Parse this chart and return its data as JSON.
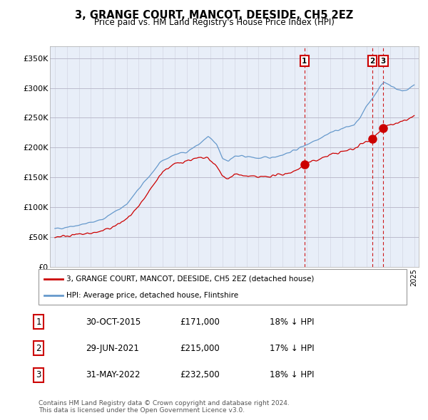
{
  "title": "3, GRANGE COURT, MANCOT, DEESIDE, CH5 2EZ",
  "subtitle": "Price paid vs. HM Land Registry's House Price Index (HPI)",
  "ylabel_ticks": [
    "£0",
    "£50K",
    "£100K",
    "£150K",
    "£200K",
    "£250K",
    "£300K",
    "£350K"
  ],
  "ytick_values": [
    0,
    50000,
    100000,
    150000,
    200000,
    250000,
    300000,
    350000
  ],
  "ylim": [
    0,
    370000
  ],
  "sale_years": [
    2015.833,
    2021.5,
    2022.417
  ],
  "sale_prices": [
    171000,
    215000,
    232500
  ],
  "sale_labels": [
    "1",
    "2",
    "3"
  ],
  "legend_line_label": "3, GRANGE COURT, MANCOT, DEESIDE, CH5 2EZ (detached house)",
  "legend_hpi_label": "HPI: Average price, detached house, Flintshire",
  "table_rows": [
    [
      "1",
      "30-OCT-2015",
      "£171,000",
      "18% ↓ HPI"
    ],
    [
      "2",
      "29-JUN-2021",
      "£215,000",
      "17% ↓ HPI"
    ],
    [
      "3",
      "31-MAY-2022",
      "£232,500",
      "18% ↓ HPI"
    ]
  ],
  "footer": "Contains HM Land Registry data © Crown copyright and database right 2024.\nThis data is licensed under the Open Government Licence v3.0.",
  "line_color": "#cc0000",
  "hpi_color": "#6699cc",
  "chart_bg": "#e8eef8",
  "sale_dot_color": "#cc0000",
  "vline_color": "#cc0000",
  "grid_color": "#bbbbcc",
  "background_color": "#ffffff"
}
